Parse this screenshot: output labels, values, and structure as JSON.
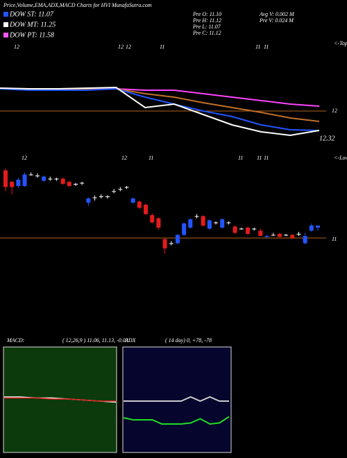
{
  "header": {
    "title": "Price,Volume,EMA,ADX,MACD Charts for HVI MunafaSutra.com"
  },
  "legend": [
    {
      "label": "DOW ST: 11.07",
      "color": "#2255ff"
    },
    {
      "label": "DOW MT: 11.25",
      "color": "#ffffff"
    },
    {
      "label": "DOW PT: 11.58",
      "color": "#ff55ff"
    }
  ],
  "stats": [
    "Pre  O: 11.10",
    "Pre  H: 11.12",
    "Pre  L: 11.07",
    "Pre  C: 11.12",
    "Avg V: 0.002  M",
    "Pre  V: 0.024  M"
  ],
  "price_panel": {
    "type": "line",
    "tops_label": "<-Tops",
    "date_labels": [
      "12",
      "12",
      "12",
      "11",
      "11",
      "11"
    ],
    "last_label": "12.32",
    "ylim": [
      11.5,
      12.5
    ],
    "yticks": [
      12
    ],
    "series": [
      {
        "color": "#ff44ff",
        "values": [
          12.32,
          12.32,
          12.32,
          12.32,
          12.32,
          12.3,
          12.3,
          12.25,
          12.2,
          12.15,
          12.1,
          12.07
        ]
      },
      {
        "color": "#c0702a",
        "values": [
          12.33,
          12.32,
          12.31,
          12.31,
          12.32,
          12.25,
          12.2,
          12.12,
          12.05,
          11.98,
          11.9,
          11.85
        ]
      },
      {
        "color": "#2255ff",
        "values": [
          12.32,
          12.3,
          12.3,
          12.3,
          12.32,
          12.2,
          12.1,
          12.0,
          11.92,
          11.8,
          11.73,
          11.72
        ]
      },
      {
        "color": "#ffffff",
        "values": [
          12.33,
          12.32,
          12.32,
          12.33,
          12.34,
          12.05,
          12.1,
          11.95,
          11.8,
          11.7,
          11.65,
          11.72
        ]
      }
    ]
  },
  "candle_panel": {
    "type": "candlestick",
    "lows_label": "<-Lows",
    "date_labels": [
      "12",
      "12",
      "11",
      "11",
      "11",
      "11"
    ],
    "ylim": [
      10.8,
      11.8
    ],
    "yticks": [
      11
    ],
    "up_color": "#2255ff",
    "down_color": "#e41b1b",
    "flat_color": "#ffffff",
    "open": [
      11.65,
      11.54,
      11.5,
      11.5,
      11.61,
      11.6,
      11.55,
      11.57,
      11.57,
      11.57,
      11.54,
      11.52,
      11.53,
      11.34,
      11.39,
      11.4,
      11.4,
      11.45,
      11.47,
      11.49,
      11.34,
      11.35,
      11.32,
      11.22,
      11.19,
      10.99,
      10.95,
      10.95,
      11.03,
      11.1,
      11.21,
      11.21,
      11.09,
      11.15,
      11.1,
      11.15,
      11.11,
      11.09,
      11.1,
      11.09,
      11.07,
      11.01,
      11.03,
      11.04,
      11.03,
      11.03,
      11.04,
      10.95,
      11.07,
      11.1
    ],
    "high": [
      11.67,
      11.55,
      11.58,
      11.63,
      11.63,
      11.62,
      11.6,
      11.59,
      11.58,
      11.58,
      11.55,
      11.53,
      11.54,
      11.39,
      11.41,
      11.42,
      11.41,
      11.47,
      11.49,
      11.5,
      11.39,
      11.36,
      11.33,
      11.24,
      11.2,
      11.0,
      10.97,
      11.04,
      11.15,
      11.19,
      11.23,
      11.22,
      11.18,
      11.16,
      11.19,
      11.16,
      11.12,
      11.1,
      11.11,
      11.1,
      11.09,
      11.03,
      11.05,
      11.05,
      11.04,
      11.04,
      11.06,
      11.05,
      11.14,
      11.12
    ],
    "low": [
      11.45,
      11.42,
      11.48,
      11.49,
      11.6,
      11.58,
      11.54,
      11.55,
      11.55,
      11.51,
      11.49,
      11.5,
      11.51,
      11.31,
      11.36,
      11.38,
      11.38,
      11.43,
      11.45,
      11.47,
      11.33,
      11.28,
      11.22,
      11.14,
      11.08,
      10.85,
      10.93,
      10.94,
      11.02,
      11.09,
      11.19,
      11.11,
      11.08,
      11.13,
      11.09,
      11.13,
      11.04,
      11.08,
      11.03,
      11.07,
      11.02,
      11.0,
      11.02,
      11.01,
      11.02,
      10.99,
      11.02,
      10.94,
      11.06,
      11.07
    ],
    "close": [
      11.49,
      11.49,
      11.56,
      11.61,
      11.61,
      11.6,
      11.59,
      11.57,
      11.57,
      11.52,
      11.5,
      11.52,
      11.53,
      11.38,
      11.39,
      11.4,
      11.4,
      11.45,
      11.47,
      11.49,
      11.38,
      11.29,
      11.23,
      11.15,
      11.1,
      10.9,
      10.95,
      11.03,
      11.14,
      11.18,
      11.21,
      11.12,
      11.17,
      11.15,
      11.18,
      11.15,
      11.05,
      11.09,
      11.04,
      11.09,
      11.02,
      11.02,
      11.03,
      11.01,
      11.03,
      11.0,
      11.04,
      11.02,
      11.12,
      11.12
    ]
  },
  "macd": {
    "label": "MACD:",
    "params": "( 12,26,9 ) 11.06,  11.13,  -0.03",
    "ylim": [
      -0.5,
      0.5
    ],
    "series": [
      {
        "color": "#ffffff",
        "values": [
          0.02,
          0.02,
          0.01,
          0.01,
          0.0,
          -0.01,
          -0.02,
          -0.03
        ]
      },
      {
        "color": "#e41b1b",
        "values": [
          0.01,
          0.01,
          0.01,
          0.0,
          0.0,
          -0.01,
          -0.02,
          -0.02
        ]
      }
    ]
  },
  "adx": {
    "label": "ADX",
    "params": "( 14  day) 0,  +78,  -78",
    "ylim": [
      0,
      100
    ],
    "series": [
      {
        "color": "#cccccc",
        "values": [
          48,
          48,
          48,
          48,
          48,
          48,
          48,
          52,
          48,
          52,
          48,
          48
        ]
      },
      {
        "color": "#22dd22",
        "values": [
          32,
          30,
          30,
          30,
          26,
          26,
          26,
          27,
          31,
          26,
          27,
          33
        ]
      }
    ]
  }
}
